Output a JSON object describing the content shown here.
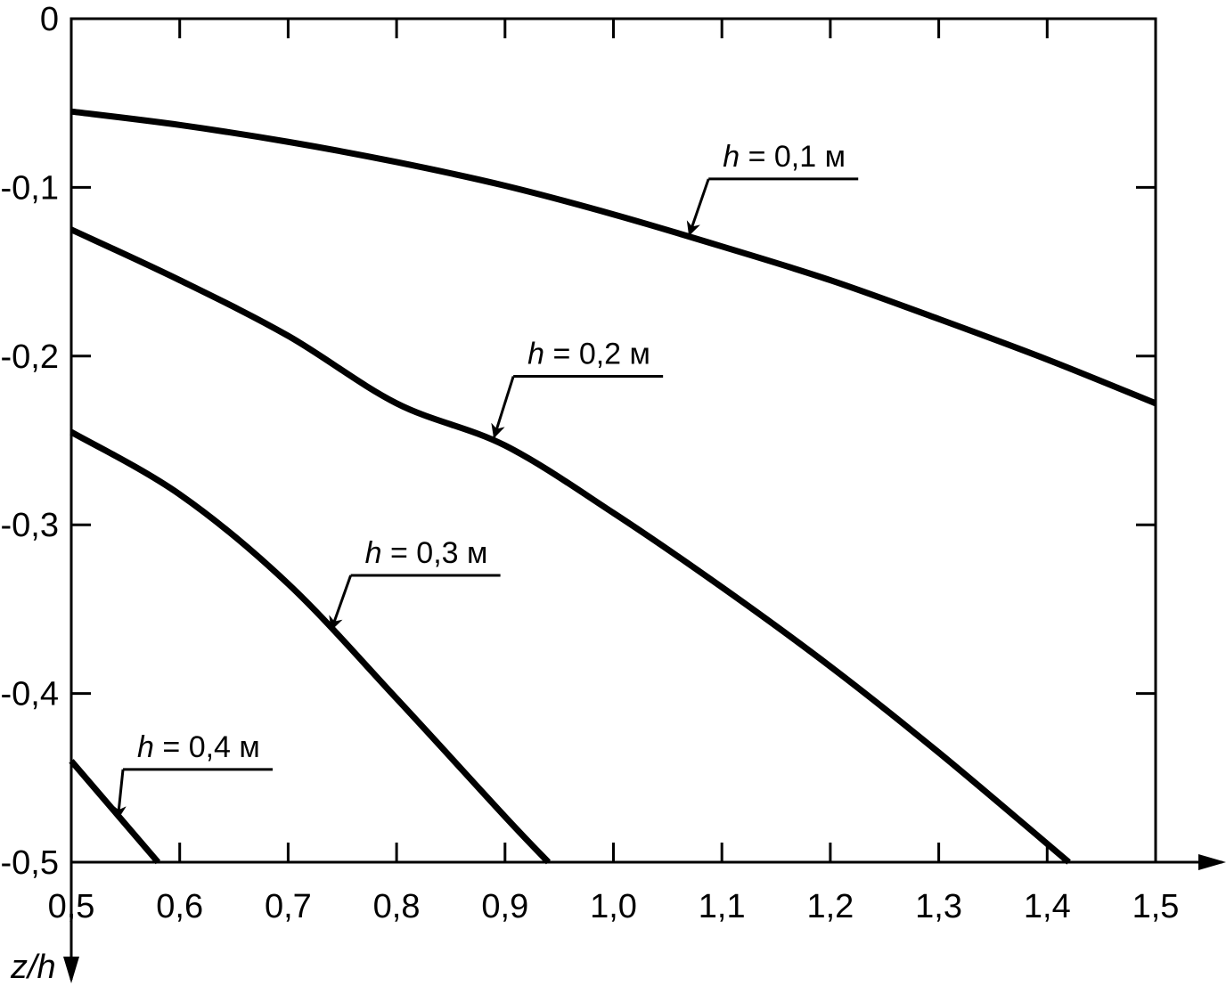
{
  "chart_data": {
    "type": "line",
    "title": "",
    "xlabel": "",
    "ylabel": "z/h",
    "xlim": [
      0.5,
      1.5
    ],
    "ylim": [
      -0.5,
      0
    ],
    "grid": false,
    "x_ticks": [
      {
        "value": 0.5,
        "label": "0,5"
      },
      {
        "value": 0.6,
        "label": "0,6"
      },
      {
        "value": 0.7,
        "label": "0,7"
      },
      {
        "value": 0.8,
        "label": "0,8"
      },
      {
        "value": 0.9,
        "label": "0,9"
      },
      {
        "value": 1.0,
        "label": "1,0"
      },
      {
        "value": 1.1,
        "label": "1,1"
      },
      {
        "value": 1.2,
        "label": "1,2"
      },
      {
        "value": 1.3,
        "label": "1,3"
      },
      {
        "value": 1.4,
        "label": "1,4"
      },
      {
        "value": 1.5,
        "label": "1,5"
      }
    ],
    "y_ticks": [
      {
        "value": 0,
        "label": "0"
      },
      {
        "value": -0.1,
        "label": "-0,1"
      },
      {
        "value": -0.2,
        "label": "-0,2"
      },
      {
        "value": -0.3,
        "label": "-0,3"
      },
      {
        "value": -0.4,
        "label": "-0,4"
      },
      {
        "value": -0.5,
        "label": "-0,5"
      }
    ],
    "series": [
      {
        "name": "h = 0,1 м",
        "h_symbol": "h",
        "h_rest": " = 0,1 м",
        "x": [
          0.5,
          0.6,
          0.7,
          0.8,
          0.9,
          1.0,
          1.1,
          1.2,
          1.3,
          1.4,
          1.5
        ],
        "y": [
          -0.055,
          -0.063,
          -0.073,
          -0.085,
          -0.099,
          -0.116,
          -0.135,
          -0.155,
          -0.178,
          -0.202,
          -0.228
        ],
        "label_x": 1.16,
        "label_y": -0.095,
        "arrow_x": 1.07,
        "arrow_y": -0.128
      },
      {
        "name": "h = 0,2 м",
        "h_symbol": "h",
        "h_rest": " = 0,2 м",
        "x": [
          0.5,
          0.6,
          0.7,
          0.8,
          0.9,
          1.0,
          1.1,
          1.2,
          1.3,
          1.42
        ],
        "y": [
          -0.125,
          -0.155,
          -0.188,
          -0.228,
          -0.253,
          -0.293,
          -0.337,
          -0.384,
          -0.435,
          -0.5
        ],
        "label_x": 0.98,
        "label_y": -0.212,
        "arrow_x": 0.89,
        "arrow_y": -0.248
      },
      {
        "name": "h = 0,3 м",
        "h_symbol": "h",
        "h_rest": " = 0,3 м",
        "x": [
          0.5,
          0.6,
          0.7,
          0.8,
          0.9,
          0.94
        ],
        "y": [
          -0.245,
          -0.282,
          -0.335,
          -0.403,
          -0.473,
          -0.5
        ],
        "label_x": 0.83,
        "label_y": -0.33,
        "arrow_x": 0.74,
        "arrow_y": -0.362
      },
      {
        "name": "h = 0,4 м",
        "h_symbol": "h",
        "h_rest": " = 0,4 м",
        "x": [
          0.5,
          0.58
        ],
        "y": [
          -0.44,
          -0.5
        ],
        "label_x": 0.62,
        "label_y": -0.445,
        "arrow_x": 0.543,
        "arrow_y": -0.474
      }
    ]
  }
}
